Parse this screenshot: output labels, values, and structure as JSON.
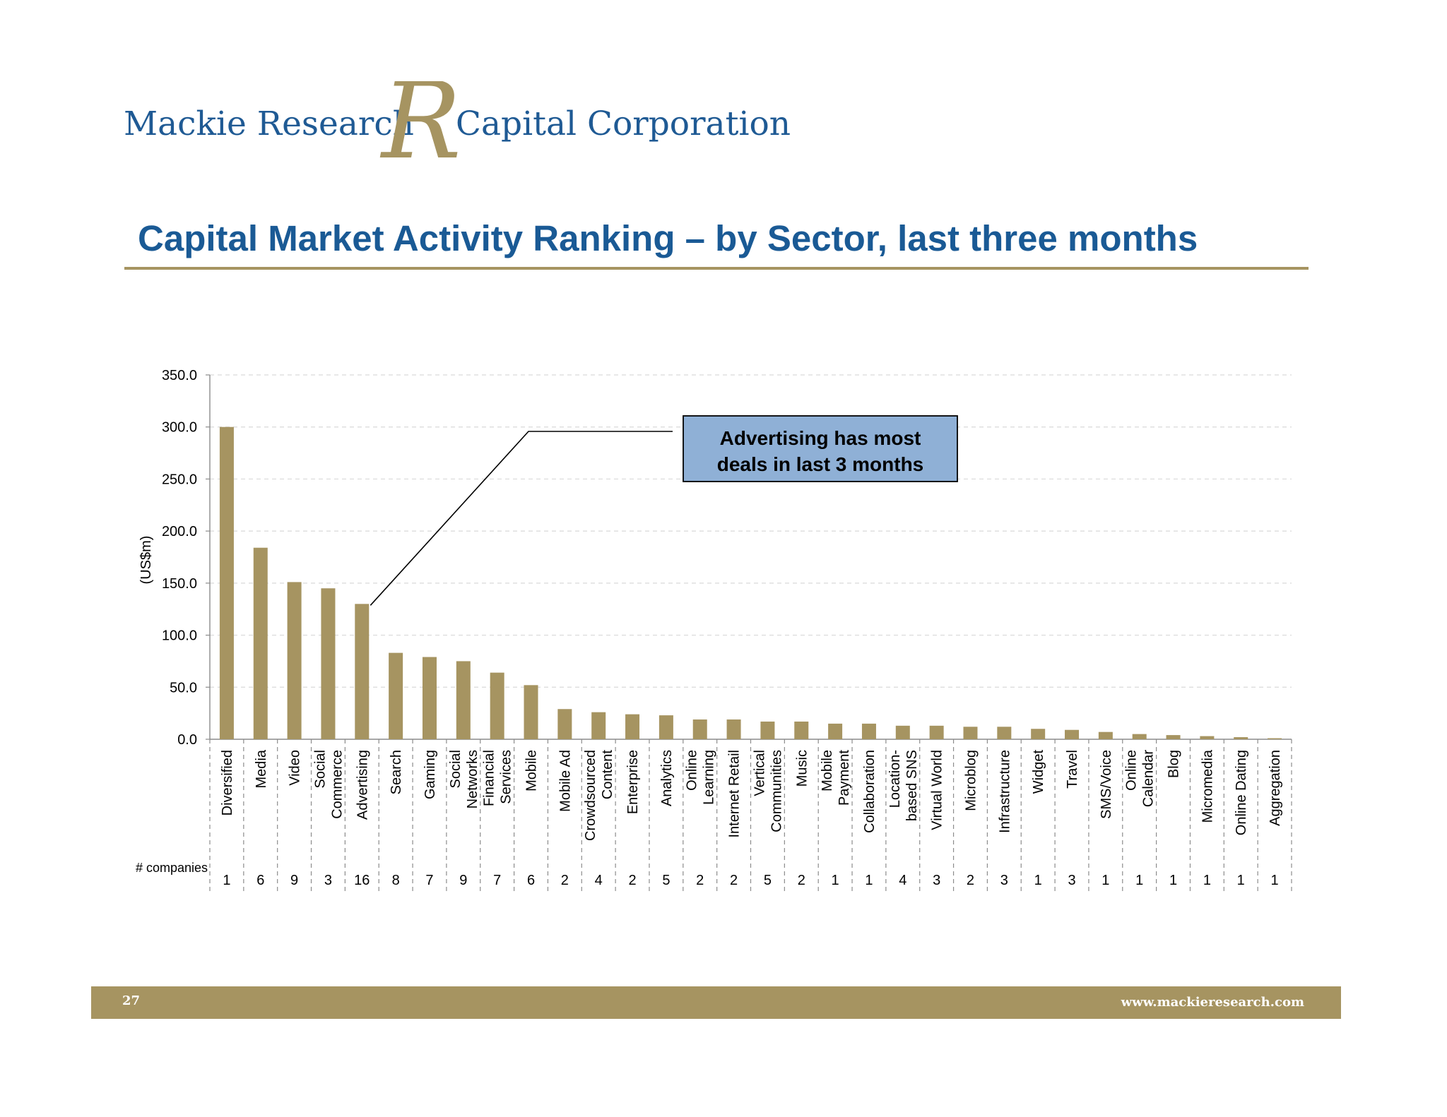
{
  "header": {
    "brand_left": "Mackie Research",
    "brand_right": "Capital Corporation",
    "logo_letter": "R",
    "title": "Capital Market Activity Ranking – by Sector, last three months"
  },
  "colors": {
    "brand_blue": "#1f5a94",
    "gold": "#a69461",
    "bar": "#a69461",
    "callout_fill": "#8fb0d6"
  },
  "callout": {
    "line1": "Advertising has most",
    "line2": "deals in last 3 months",
    "target_category": "Advertising"
  },
  "companies_label": "# companies",
  "chart_data": {
    "type": "bar",
    "title": "Capital Market Activity Ranking – by Sector, last three months",
    "xlabel": "",
    "ylabel": "(US$m)",
    "ylim": [
      0,
      350
    ],
    "yticks": [
      "0.0",
      "50.0",
      "100.0",
      "150.0",
      "200.0",
      "250.0",
      "300.0",
      "350.0"
    ],
    "grid": true,
    "categories": [
      "Diversified",
      "Media",
      "Video",
      "Social Commerce",
      "Advertising",
      "Search",
      "Gaming",
      "Social Networks",
      "Financial Services",
      "Mobile",
      "Mobile Ad",
      "Crowdsourced Content",
      "Enterprise",
      "Analytics",
      "Online Learning",
      "Internet Retail",
      "Vertical Communities",
      "Music",
      "Mobile Payment",
      "Collaboration",
      "Location-based SNS",
      "Virtual World",
      "Microblog",
      "Infrastructure",
      "Widget",
      "Travel",
      "SMS/Voice",
      "Online Calendar",
      "Blog",
      "Micromedia",
      "Online Dating",
      "Aggregation"
    ],
    "category_lines": [
      [
        "Diversified"
      ],
      [
        "Media"
      ],
      [
        "Video"
      ],
      [
        "Social",
        "Commerce"
      ],
      [
        "Advertising"
      ],
      [
        "Search"
      ],
      [
        "Gaming"
      ],
      [
        "Social",
        "Networks"
      ],
      [
        "Financial",
        "Services"
      ],
      [
        "Mobile"
      ],
      [
        "Mobile Ad"
      ],
      [
        "Crowdsourced",
        "Content"
      ],
      [
        "Enterprise"
      ],
      [
        "Analytics"
      ],
      [
        "Online",
        "Learning"
      ],
      [
        "Internet Retail"
      ],
      [
        "Vertical",
        "Communities"
      ],
      [
        "Music"
      ],
      [
        "Mobile",
        "Payment"
      ],
      [
        "Collaboration"
      ],
      [
        "Location-",
        "based SNS"
      ],
      [
        "Virtual World"
      ],
      [
        "Microblog"
      ],
      [
        "Infrastructure"
      ],
      [
        "Widget"
      ],
      [
        "Travel"
      ],
      [
        "SMS/Voice"
      ],
      [
        "Online",
        "Calendar"
      ],
      [
        "Blog"
      ],
      [
        "Micromedia"
      ],
      [
        "Online Dating"
      ],
      [
        "Aggregation"
      ]
    ],
    "values": [
      300,
      184,
      151,
      145,
      130,
      83,
      79,
      75,
      64,
      52,
      29,
      26,
      24,
      23,
      19,
      19,
      17,
      17,
      15,
      15,
      13,
      13,
      12,
      12,
      10,
      9,
      7,
      5,
      4,
      3,
      2,
      1
    ],
    "companies": [
      "1",
      "6",
      "9",
      "3",
      "16",
      "8",
      "7",
      "9",
      "7",
      "6",
      "2",
      "4",
      "2",
      "5",
      "2",
      "2",
      "5",
      "2",
      "1",
      "1",
      "4",
      "3",
      "2",
      "3",
      "1",
      "3",
      "1",
      "1",
      "1",
      "1",
      "1",
      "1"
    ]
  },
  "footer": {
    "page_number": "27",
    "url": "www.mackieresearch.com"
  }
}
